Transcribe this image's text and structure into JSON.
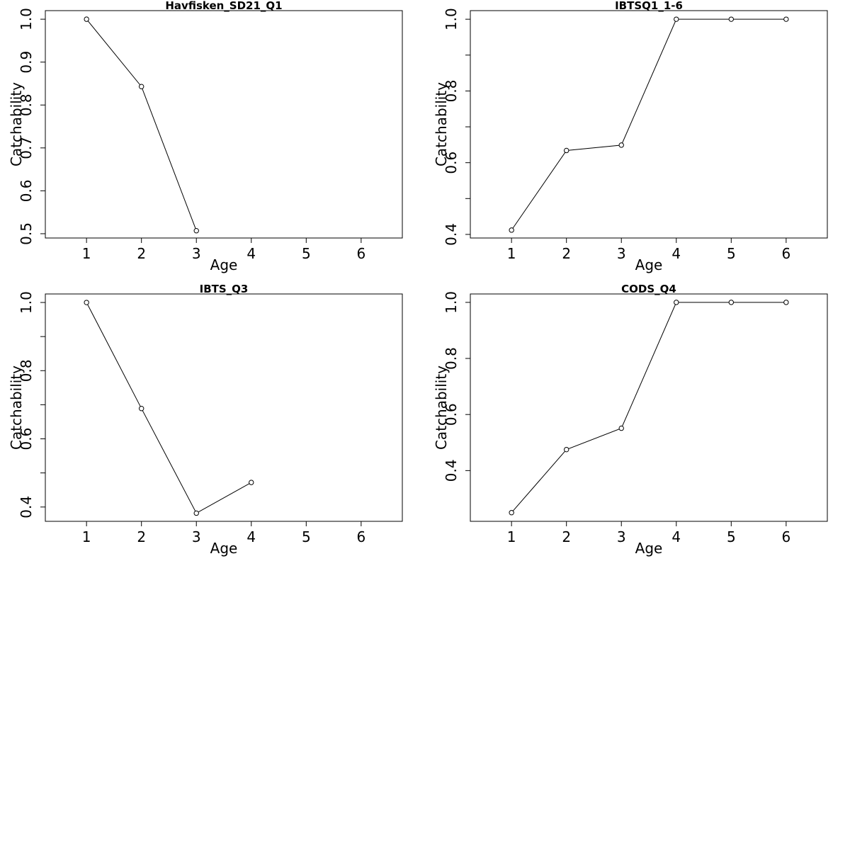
{
  "chart_data": [
    {
      "type": "line",
      "title": "Havfisken_SD21_Q1",
      "xlabel": "Age",
      "ylabel": "Catchability",
      "xlim": [
        0.25,
        6.75
      ],
      "ylim": [
        0.49,
        1.02
      ],
      "x_ticks": [
        1,
        2,
        3,
        4,
        5,
        6
      ],
      "y_ticks": [
        0.5,
        0.6,
        0.7,
        0.8,
        0.9,
        1.0
      ],
      "y_tick_labels": [
        "0.5",
        "0.6",
        "0.7",
        "0.8",
        "0.9",
        "1.0"
      ],
      "x": [
        1,
        2,
        3
      ],
      "values": [
        1.0,
        0.843,
        0.507
      ],
      "grid": false,
      "markers": "open-circle"
    },
    {
      "type": "line",
      "title": "IBTSQ1_1-6",
      "xlabel": "Age",
      "ylabel": "Catchability",
      "xlim": [
        0.25,
        6.75
      ],
      "ylim": [
        0.39,
        1.024
      ],
      "x_ticks": [
        1,
        2,
        3,
        4,
        5,
        6
      ],
      "y_ticks": [
        0.4,
        0.5,
        0.6,
        0.7,
        0.8,
        0.9,
        1.0
      ],
      "y_tick_labels": [
        "0.4",
        "",
        "0.6",
        "",
        "0.8",
        "",
        "1.0"
      ],
      "x": [
        1,
        2,
        3,
        4,
        5,
        6
      ],
      "values": [
        0.412,
        0.634,
        0.649,
        1.0,
        1.0,
        1.0
      ],
      "grid": false,
      "markers": "open-circle"
    },
    {
      "type": "line",
      "title": "IBTS_Q3",
      "xlabel": "Age",
      "ylabel": "Catchability",
      "xlim": [
        0.25,
        6.75
      ],
      "ylim": [
        0.358,
        1.025
      ],
      "x_ticks": [
        1,
        2,
        3,
        4,
        5,
        6
      ],
      "y_ticks": [
        0.4,
        0.5,
        0.6,
        0.7,
        0.8,
        0.9,
        1.0
      ],
      "y_tick_labels": [
        "0.4",
        "",
        "0.6",
        "",
        "0.8",
        "",
        "1.0"
      ],
      "x": [
        1,
        2,
        3,
        4
      ],
      "values": [
        1.0,
        0.689,
        0.382,
        0.472
      ],
      "grid": false,
      "markers": "open-circle"
    },
    {
      "type": "line",
      "title": "CODS_Q4",
      "xlabel": "Age",
      "ylabel": "Catchability",
      "xlim": [
        0.25,
        6.75
      ],
      "ylim": [
        0.219,
        1.03
      ],
      "x_ticks": [
        1,
        2,
        3,
        4,
        5,
        6
      ],
      "y_ticks": [
        0.4,
        0.6,
        0.8,
        1.0
      ],
      "y_tick_labels": [
        "0.4",
        "0.6",
        "0.8",
        "1.0"
      ],
      "x": [
        1,
        2,
        3,
        4,
        5,
        6
      ],
      "values": [
        0.25,
        0.475,
        0.551,
        1.0,
        1.0,
        1.0
      ],
      "grid": false,
      "markers": "open-circle"
    }
  ]
}
